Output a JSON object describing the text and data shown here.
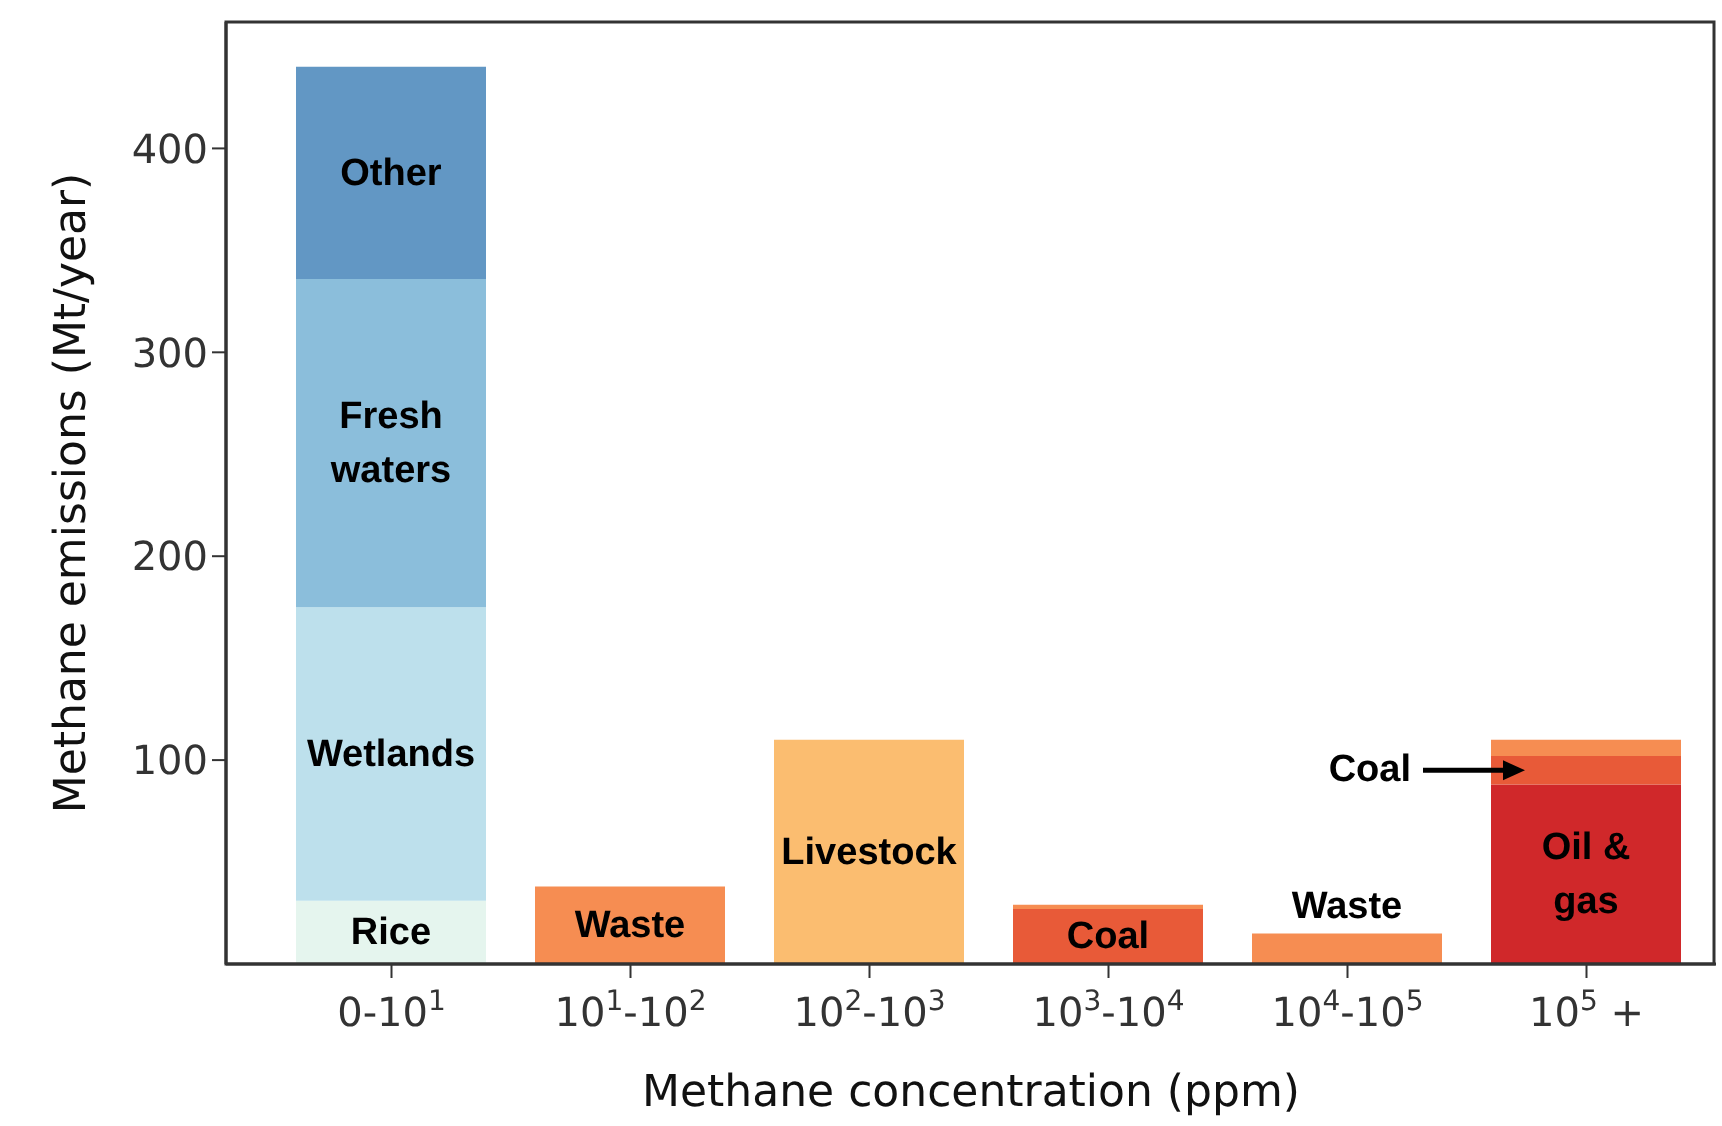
{
  "chart_data": {
    "type": "bar",
    "stacked": true,
    "xlabel": "Methane concentration (ppm)",
    "ylabel": "Methane emissions (Mt/year)",
    "categories": [
      "0-10$^{1}$",
      "10$^{1}$-10$^{2}$",
      "10$^{2}$-10$^{3}$",
      "10$^{3}$-10$^{4}$",
      "10$^{4}$-10$^{5}$",
      "10$^{5}$ +"
    ],
    "series": [
      {
        "name": "Rice",
        "color": "#e5f5ee",
        "values": [
          31,
          null,
          null,
          null,
          null,
          null
        ]
      },
      {
        "name": "Waste",
        "color": "#f68d52",
        "values": [
          null,
          38,
          null,
          null,
          15,
          null
        ]
      },
      {
        "name": "Livestock",
        "color": "#fbbd70",
        "values": [
          null,
          null,
          110,
          null,
          null,
          null
        ]
      },
      {
        "name": "Oil & gas",
        "color": "#d0282a",
        "values": [
          null,
          null,
          null,
          null,
          null,
          88
        ]
      },
      {
        "name": "Coal",
        "color": "#e85a38",
        "values": [
          null,
          null,
          null,
          27,
          null,
          14
        ]
      },
      {
        "name": "Wetlands",
        "color": "#bde0ec",
        "values": [
          144,
          null,
          null,
          null,
          null,
          null
        ]
      },
      {
        "name": "Fresh waters",
        "color": "#8bbedb",
        "values": [
          161,
          null,
          null,
          null,
          null,
          null
        ]
      },
      {
        "name": "Other",
        "color": "#6297c4",
        "values": [
          104,
          null,
          null,
          null,
          null,
          null
        ]
      },
      {
        "color": "#f68d52",
        "values": [
          null,
          null,
          null,
          2,
          null,
          8
        ]
      }
    ],
    "ylim": [
      0,
      462
    ],
    "yticks": [
      100,
      200,
      300,
      400
    ],
    "grid": false,
    "legend": false
  }
}
